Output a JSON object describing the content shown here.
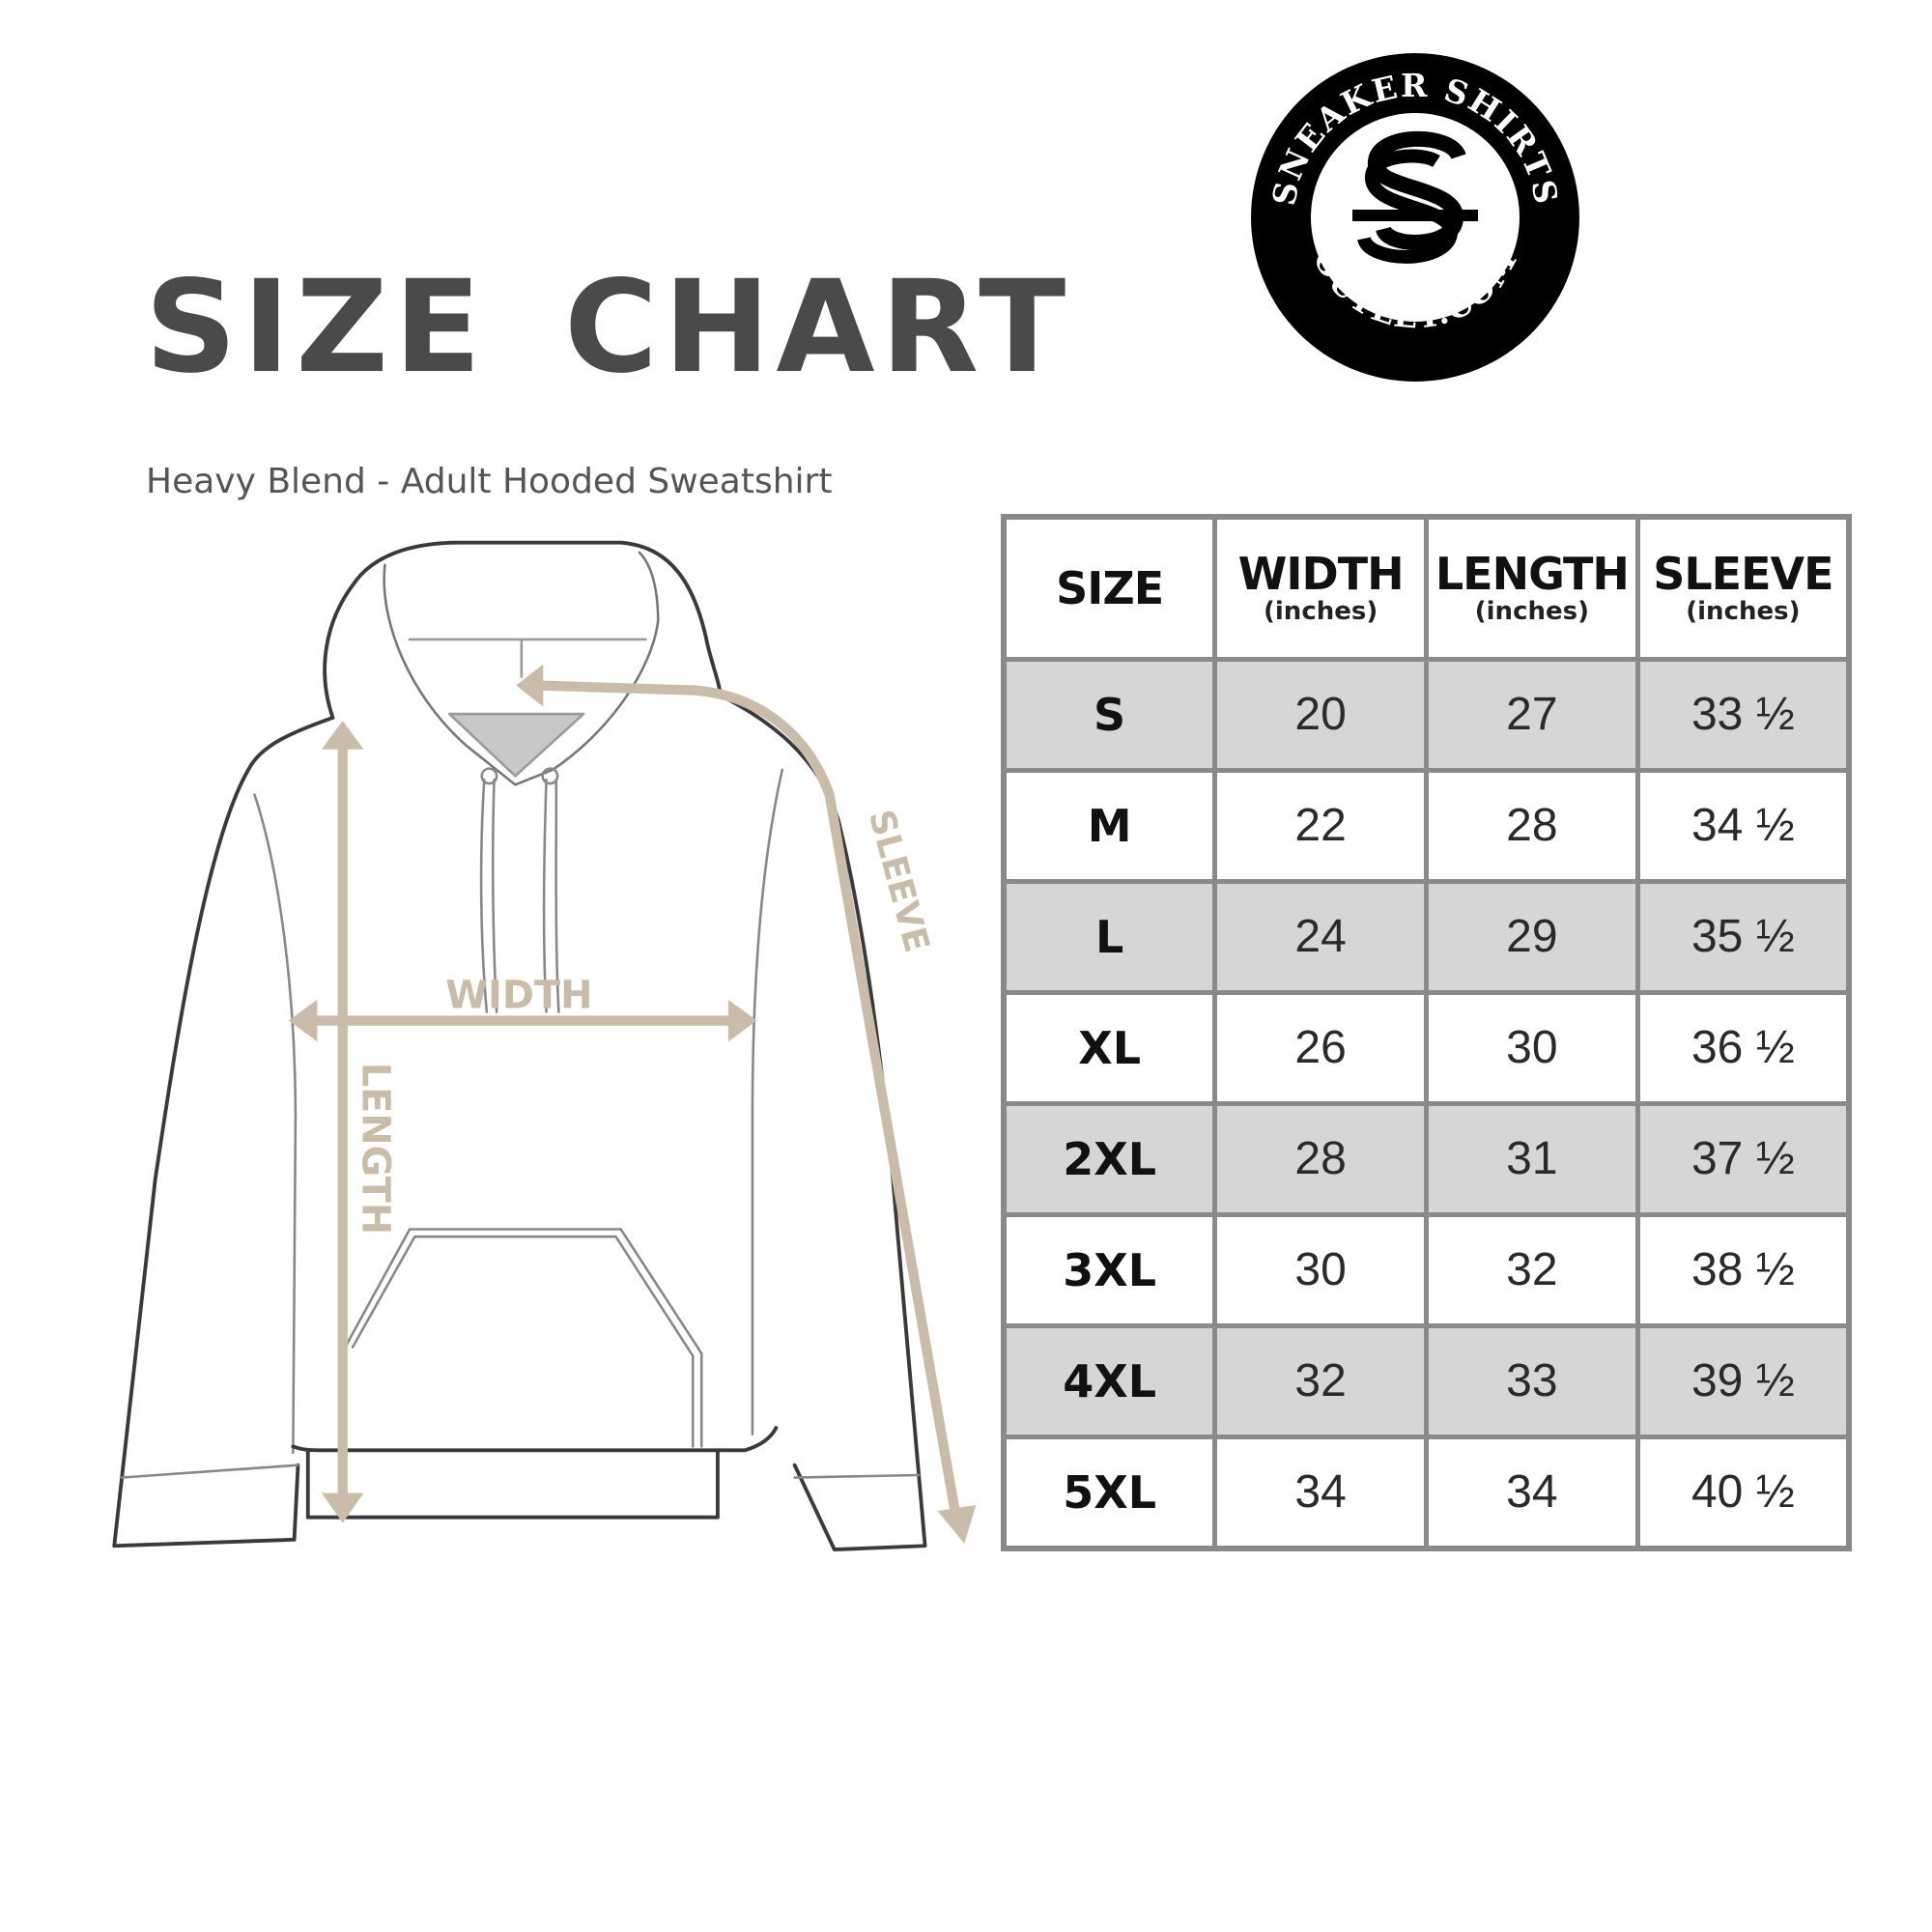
{
  "title": "SIZE CHART",
  "subtitle": "Heavy Blend - Adult Hooded Sweatshirt",
  "logo": {
    "top_text": "SNEAKER SHIRTS",
    "bottom_text": "OUTLET.COM",
    "monogram": "SS"
  },
  "diagram": {
    "width_label": "WIDTH",
    "length_label": "LENGTH",
    "sleeve_label": "SLEEVE",
    "arrow_color": "#c9bda9"
  },
  "table": {
    "headers": [
      {
        "label": "SIZE",
        "unit": ""
      },
      {
        "label": "WIDTH",
        "unit": "(inches)"
      },
      {
        "label": "LENGTH",
        "unit": "(inches)"
      },
      {
        "label": "SLEEVE",
        "unit": "(inches)"
      }
    ],
    "rows": [
      [
        "S",
        "20",
        "27",
        "33 ½"
      ],
      [
        "M",
        "22",
        "28",
        "34 ½"
      ],
      [
        "L",
        "24",
        "29",
        "35 ½"
      ],
      [
        "XL",
        "26",
        "30",
        "36 ½"
      ],
      [
        "2XL",
        "28",
        "31",
        "37 ½"
      ],
      [
        "3XL",
        "30",
        "32",
        "38 ½"
      ],
      [
        "4XL",
        "32",
        "33",
        "39 ½"
      ],
      [
        "5XL",
        "34",
        "34",
        "40 ½"
      ]
    ],
    "shade_color": "#d6d6d6"
  }
}
